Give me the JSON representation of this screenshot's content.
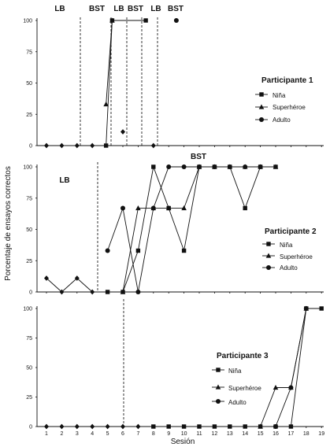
{
  "chart_data": {
    "type": "line",
    "ylabel": "Porcentaje de ensayos correctos",
    "xlabel": "Sesión",
    "x_ticks": [
      1,
      2,
      3,
      4,
      5,
      6,
      7,
      8,
      9,
      10,
      11,
      12,
      13,
      14,
      15,
      16,
      17,
      18,
      19
    ],
    "y_ticks": [
      0,
      25,
      50,
      75,
      100
    ],
    "ylim": [
      0,
      100
    ],
    "legend_labels": [
      "Niña",
      "Superhéroe",
      "Adulto"
    ],
    "panels": [
      {
        "title": "Participante 1",
        "phase_labels": [
          "LB",
          "BST",
          "LB",
          "BST",
          "LB",
          "BST"
        ],
        "baseline_points": [
          [
            1,
            0
          ],
          [
            2,
            0
          ],
          [
            3,
            0
          ],
          [
            4,
            0
          ],
          [
            6,
            11
          ],
          [
            8,
            0
          ]
        ],
        "series": [
          {
            "name": "Niña",
            "points": [
              [
                4.9,
                0
              ],
              [
                5.3,
                100
              ],
              [
                7.5,
                100
              ]
            ]
          },
          {
            "name": "Superhéroe",
            "points": [
              [
                4.9,
                33
              ],
              [
                5.3,
                100
              ]
            ]
          },
          {
            "name": "Adulto",
            "points": [
              [
                9.5,
                100
              ]
            ]
          }
        ]
      },
      {
        "title": "Participante 2",
        "phase_labels": [
          "LB",
          "BST"
        ],
        "baseline_points": [
          [
            1,
            11
          ],
          [
            2,
            0
          ],
          [
            3,
            11
          ],
          [
            4,
            0
          ]
        ],
        "series": [
          {
            "name": "Niña",
            "points": [
              [
                5,
                0
              ],
              [
                6,
                0
              ],
              [
                7,
                33
              ],
              [
                8,
                100
              ],
              [
                9,
                67
              ],
              [
                10,
                33
              ],
              [
                11,
                100
              ],
              [
                12,
                100
              ],
              [
                13,
                100
              ],
              [
                14,
                67
              ],
              [
                15,
                100
              ],
              [
                16,
                100
              ]
            ]
          },
          {
            "name": "Superhéroe",
            "points": [
              [
                6,
                0
              ],
              [
                7,
                67
              ],
              [
                8,
                67
              ],
              [
                9,
                67
              ],
              [
                10,
                67
              ],
              [
                11,
                100
              ],
              [
                12,
                100
              ],
              [
                13,
                100
              ],
              [
                14,
                100
              ],
              [
                15,
                100
              ],
              [
                16,
                100
              ]
            ]
          },
          {
            "name": "Adulto",
            "points": [
              [
                5,
                33
              ],
              [
                6,
                67
              ],
              [
                7,
                0
              ],
              [
                8,
                67
              ],
              [
                9,
                100
              ],
              [
                10,
                100
              ],
              [
                11,
                100
              ],
              [
                12,
                100
              ],
              [
                13,
                100
              ],
              [
                14,
                100
              ],
              [
                15,
                100
              ]
            ]
          }
        ]
      },
      {
        "title": "Participante 3",
        "phase_labels": [],
        "baseline_points": [
          [
            1,
            0
          ],
          [
            2,
            0
          ],
          [
            3,
            0
          ],
          [
            4,
            0
          ],
          [
            5,
            0
          ],
          [
            6,
            0
          ],
          [
            7,
            0
          ]
        ],
        "series": [
          {
            "name": "Niña",
            "points": [
              [
                8,
                0
              ],
              [
                9,
                0
              ],
              [
                10,
                0
              ],
              [
                11,
                0
              ],
              [
                12,
                0
              ],
              [
                13,
                0
              ],
              [
                14,
                0
              ],
              [
                15,
                0
              ],
              [
                16,
                0
              ],
              [
                17,
                0
              ],
              [
                18,
                100
              ],
              [
                19,
                100
              ]
            ]
          },
          {
            "name": "Superhéroe",
            "points": [
              [
                15,
                0
              ],
              [
                16,
                33
              ],
              [
                17,
                33
              ],
              [
                18,
                100
              ]
            ]
          },
          {
            "name": "Adulto",
            "points": [
              [
                16,
                0
              ],
              [
                17,
                33
              ],
              [
                18,
                100
              ]
            ]
          }
        ]
      }
    ]
  }
}
